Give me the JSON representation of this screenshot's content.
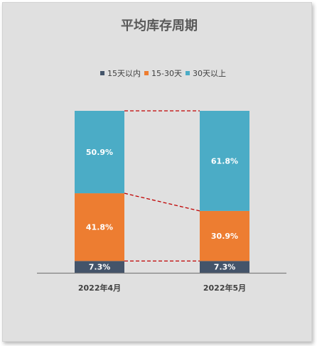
{
  "chart_data": {
    "type": "bar",
    "stacked": true,
    "percent": true,
    "title": "平均库存周期",
    "categories": [
      "2022年4月",
      "2022年5月"
    ],
    "series": [
      {
        "name": "15天以内",
        "color": "#44546a",
        "values": [
          7.3,
          7.3
        ],
        "labels": [
          "7.3%",
          "7.3%"
        ]
      },
      {
        "name": "15-30天",
        "color": "#ed7d31",
        "values": [
          41.8,
          30.9
        ],
        "labels": [
          "41.8%",
          "30.9%"
        ]
      },
      {
        "name": "30天以上",
        "color": "#4bacc6",
        "values": [
          50.9,
          61.8
        ],
        "labels": [
          "50.9%",
          "61.8%"
        ]
      }
    ],
    "ylim": [
      0,
      100
    ],
    "legend_position": "top",
    "series_lines": {
      "color": "#c00000",
      "style": "dashed"
    }
  }
}
